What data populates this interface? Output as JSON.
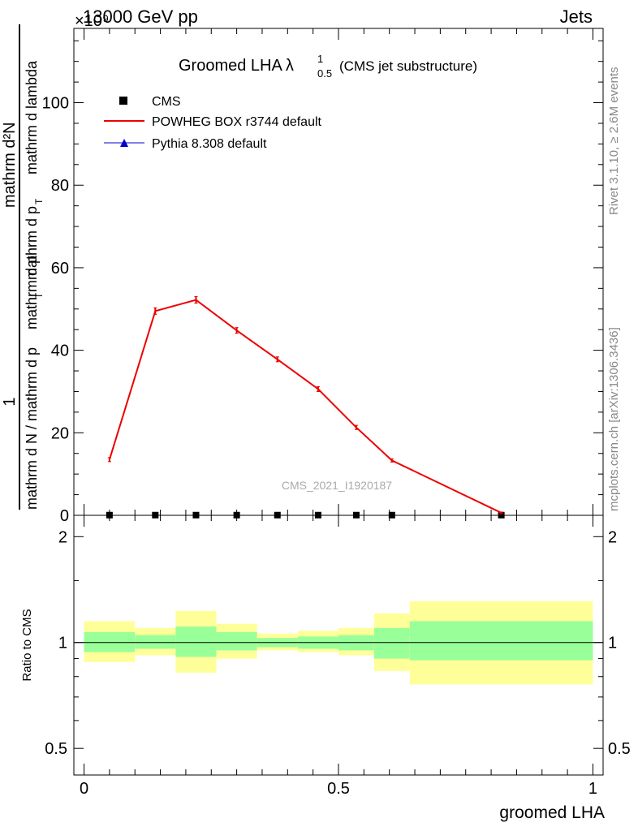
{
  "header": {
    "left": "13000 GeV pp",
    "right": "Jets",
    "exponent": "×10⁹"
  },
  "side_labels": {
    "rivet": "Rivet 3.1.10, ≥ 2.6M events",
    "mcplots": "mcplots.cern.ch [arXiv:1306.3436]"
  },
  "chart_data": [
    {
      "type": "line",
      "title_main": "Groomed LHA",
      "title_lambda": "λ",
      "title_sup": "1",
      "title_sub": "0.5",
      "title_suffix": "(CMS jet substructure)",
      "watermark": "CMS_2021_I1920187",
      "ylabel": {
        "numerator": "mathrm d²N",
        "upper_1": "mathrm d p",
        "upper_2": "mathrm d lambda",
        "upper_sub": "T",
        "lower_num": "1",
        "lower_den_1": "mathrm d N / mathrm d p",
        "lower_den_2": "mathrm d p",
        "lower_sub": "T"
      },
      "ylim": [
        0,
        118
      ],
      "xlim": [
        -0.02,
        1.02
      ],
      "y_ticks": [
        "0",
        "20",
        "40",
        "60",
        "80",
        "100"
      ],
      "y_tick_values": [
        0,
        20,
        40,
        60,
        80,
        100
      ],
      "legend": [
        "CMS",
        "POWHEG BOX r3744 default",
        "Pythia 8.308 default"
      ],
      "legend_placement": "top-left",
      "series": [
        {
          "name": "CMS",
          "color": "#000000",
          "marker": "square",
          "x": [
            0.05,
            0.14,
            0.22,
            0.3,
            0.38,
            0.46,
            0.535,
            0.605,
            0.82
          ],
          "values": [
            0.05,
            0.05,
            0.05,
            0.05,
            0.05,
            0.05,
            0.05,
            0.05,
            0.05
          ]
        },
        {
          "name": "POWHEG BOX r3744 default",
          "color": "#ee0000",
          "marker": "line",
          "x": [
            0.05,
            0.14,
            0.22,
            0.3,
            0.38,
            0.46,
            0.535,
            0.605,
            0.82
          ],
          "values": [
            13.5,
            49.5,
            52.2,
            44.8,
            37.8,
            30.6,
            21.3,
            13.3,
            0.6
          ],
          "errors": [
            0.5,
            0.8,
            0.8,
            0.7,
            0.6,
            0.6,
            0.5,
            0.4,
            0.2
          ]
        },
        {
          "name": "Pythia 8.308 default",
          "color": "#0000cc",
          "marker": "triangle",
          "x": [],
          "values": []
        }
      ]
    },
    {
      "type": "area",
      "ylabel": "Ratio to CMS",
      "xlabel": "groomed LHA",
      "ylog": true,
      "ylim": [
        0.42,
        2.3
      ],
      "xlim": [
        -0.02,
        1.02
      ],
      "y_ticks": [
        "0.5",
        "1",
        "2"
      ],
      "y_tick_values": [
        0.5,
        1,
        2
      ],
      "x_ticks": [
        "0",
        "0.5",
        "1"
      ],
      "x_tick_values": [
        0,
        0.5,
        1
      ],
      "reference_line": 1,
      "bands": {
        "inner_color": "#99ff99",
        "outer_color": "#ffff99",
        "bins": [
          {
            "x0": 0.0,
            "x1": 0.1,
            "inner": [
              0.94,
              1.07
            ],
            "outer": [
              0.88,
              1.15
            ]
          },
          {
            "x0": 0.1,
            "x1": 0.18,
            "inner": [
              0.96,
              1.05
            ],
            "outer": [
              0.92,
              1.1
            ]
          },
          {
            "x0": 0.18,
            "x1": 0.26,
            "inner": [
              0.91,
              1.11
            ],
            "outer": [
              0.82,
              1.23
            ]
          },
          {
            "x0": 0.26,
            "x1": 0.34,
            "inner": [
              0.95,
              1.07
            ],
            "outer": [
              0.9,
              1.13
            ]
          },
          {
            "x0": 0.34,
            "x1": 0.42,
            "inner": [
              0.97,
              1.03
            ],
            "outer": [
              0.95,
              1.06
            ]
          },
          {
            "x0": 0.42,
            "x1": 0.5,
            "inner": [
              0.96,
              1.04
            ],
            "outer": [
              0.94,
              1.08
            ]
          },
          {
            "x0": 0.5,
            "x1": 0.57,
            "inner": [
              0.95,
              1.05
            ],
            "outer": [
              0.92,
              1.1
            ]
          },
          {
            "x0": 0.57,
            "x1": 0.64,
            "inner": [
              0.9,
              1.1
            ],
            "outer": [
              0.83,
              1.21
            ]
          },
          {
            "x0": 0.64,
            "x1": 1.0,
            "inner": [
              0.89,
              1.15
            ],
            "outer": [
              0.76,
              1.31
            ]
          }
        ]
      }
    }
  ]
}
